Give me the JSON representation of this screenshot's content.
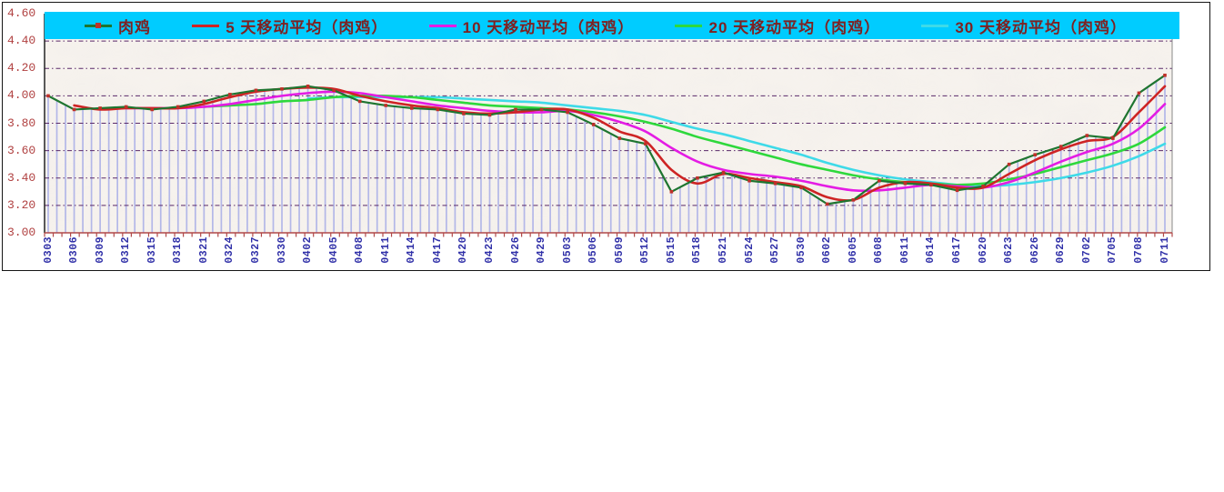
{
  "chart_data": {
    "type": "line",
    "title": "",
    "xlabel": "",
    "ylabel": "",
    "x_categories": [
      "0303",
      "0306",
      "0309",
      "0312",
      "0315",
      "0318",
      "0321",
      "0324",
      "0327",
      "0330",
      "0402",
      "0405",
      "0408",
      "0411",
      "0414",
      "0417",
      "0420",
      "0423",
      "0426",
      "0429",
      "0503",
      "0506",
      "0509",
      "0512",
      "0515",
      "0518",
      "0521",
      "0524",
      "0527",
      "0530",
      "0602",
      "0605",
      "0608",
      "0611",
      "0614",
      "0617",
      "0620",
      "0623",
      "0626",
      "0629",
      "0702",
      "0705",
      "0708",
      "0711"
    ],
    "y_tick_labels": [
      "4.60",
      "4.40",
      "4.20",
      "4.00",
      "3.80",
      "3.60",
      "3.40",
      "3.20",
      "3.00"
    ],
    "ylim": [
      3.0,
      4.6
    ],
    "y_tick_step": 0.2,
    "grid": "horizontal-dashed",
    "drop_lines": true,
    "legend_position": "top",
    "series": [
      {
        "name": "肉鸡",
        "color": "#1E7530",
        "marker": "square",
        "marker_color": "#C03028",
        "values": [
          4.0,
          3.9,
          3.91,
          3.92,
          3.9,
          3.92,
          3.96,
          4.01,
          4.04,
          4.05,
          4.07,
          4.04,
          3.96,
          3.93,
          3.91,
          3.9,
          3.87,
          3.86,
          3.9,
          3.9,
          3.88,
          3.79,
          3.69,
          3.65,
          3.3,
          3.4,
          3.44,
          3.38,
          3.36,
          3.33,
          3.21,
          3.24,
          3.38,
          3.36,
          3.35,
          3.31,
          3.34,
          3.5,
          3.57,
          3.63,
          3.71,
          3.69,
          4.02,
          4.15
        ]
      },
      {
        "name": "5 天移动平均（肉鸡）",
        "color": "#CE2424",
        "marker": "none",
        "values": [
          null,
          3.93,
          3.9,
          3.91,
          3.91,
          3.91,
          3.94,
          3.99,
          4.03,
          4.05,
          4.06,
          4.05,
          4.0,
          3.96,
          3.93,
          3.91,
          3.88,
          3.87,
          3.88,
          3.9,
          3.9,
          3.84,
          3.74,
          3.67,
          3.46,
          3.36,
          3.43,
          3.4,
          3.37,
          3.34,
          3.26,
          3.24,
          3.33,
          3.37,
          3.36,
          3.33,
          3.33,
          3.43,
          3.53,
          3.61,
          3.67,
          3.7,
          3.88,
          4.07
        ]
      },
      {
        "name": "10 天移动平均（肉鸡）",
        "color": "#E41CE4",
        "marker": "none",
        "values": [
          null,
          null,
          null,
          3.91,
          3.91,
          3.91,
          3.92,
          3.94,
          3.97,
          4.0,
          4.02,
          4.03,
          4.02,
          3.99,
          3.96,
          3.93,
          3.91,
          3.89,
          3.88,
          3.88,
          3.89,
          3.86,
          3.81,
          3.74,
          3.62,
          3.52,
          3.46,
          3.43,
          3.41,
          3.38,
          3.34,
          3.31,
          3.31,
          3.33,
          3.35,
          3.34,
          3.33,
          3.37,
          3.44,
          3.52,
          3.59,
          3.65,
          3.76,
          3.94
        ]
      },
      {
        "name": "20 天移动平均（肉鸡）",
        "color": "#2ED83C",
        "marker": "none",
        "values": [
          null,
          null,
          null,
          null,
          null,
          null,
          3.92,
          3.93,
          3.94,
          3.96,
          3.97,
          3.99,
          4.0,
          4.0,
          3.99,
          3.97,
          3.95,
          3.93,
          3.92,
          3.91,
          3.9,
          3.88,
          3.85,
          3.81,
          3.76,
          3.7,
          3.65,
          3.6,
          3.55,
          3.5,
          3.46,
          3.42,
          3.39,
          3.37,
          3.36,
          3.35,
          3.36,
          3.39,
          3.43,
          3.48,
          3.53,
          3.58,
          3.65,
          3.77
        ]
      },
      {
        "name": "30 天移动平均（肉鸡）",
        "color": "#3EDAE8",
        "marker": "none",
        "values": [
          null,
          null,
          null,
          null,
          null,
          null,
          null,
          null,
          null,
          null,
          3.98,
          3.99,
          3.99,
          3.99,
          3.99,
          3.99,
          3.98,
          3.97,
          3.96,
          3.95,
          3.93,
          3.91,
          3.89,
          3.86,
          3.81,
          3.76,
          3.72,
          3.67,
          3.62,
          3.57,
          3.51,
          3.46,
          3.42,
          3.39,
          3.37,
          3.35,
          3.34,
          3.35,
          3.37,
          3.4,
          3.44,
          3.49,
          3.56,
          3.65
        ]
      }
    ]
  },
  "style": {
    "legend_bg": "#00CCFF",
    "legend_text_color": "#7E2121",
    "y_label_color": "#B04040",
    "x_label_color": "#3030A8",
    "gridline_color": "#5A2A6A",
    "x_axis_line_color": "#B04848",
    "y_axis_line_color": "#151515",
    "plot_right_border_color": "#888888",
    "drop_line_color": "#B3B7E8",
    "plot_bg": "#F7F3EE",
    "frame_border": "#151515"
  }
}
